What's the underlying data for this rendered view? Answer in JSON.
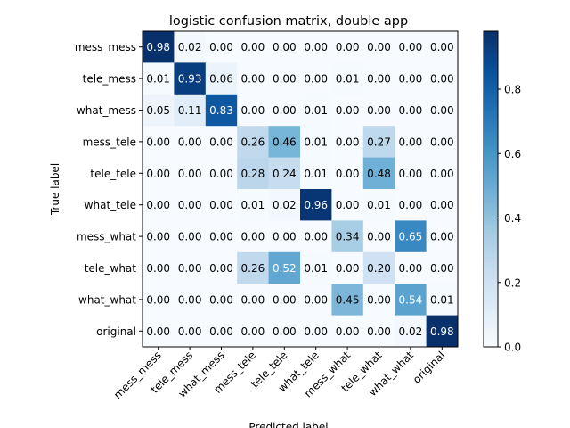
{
  "chart_data": {
    "type": "heatmap",
    "title": "logistic confusion matrix, double app",
    "xlabel": "Predicted label",
    "ylabel": "True label",
    "x_categories": [
      "mess_mess",
      "tele_mess",
      "what_mess",
      "mess_tele",
      "tele_tele",
      "what_tele",
      "mess_what",
      "tele_what",
      "what_what",
      "original"
    ],
    "y_categories": [
      "mess_mess",
      "tele_mess",
      "what_mess",
      "mess_tele",
      "tele_tele",
      "what_tele",
      "mess_what",
      "tele_what",
      "what_what",
      "original"
    ],
    "values": [
      [
        0.98,
        0.02,
        0.0,
        0.0,
        0.0,
        0.0,
        0.0,
        0.0,
        0.0,
        0.0
      ],
      [
        0.01,
        0.93,
        0.06,
        0.0,
        0.0,
        0.0,
        0.01,
        0.0,
        0.0,
        0.0
      ],
      [
        0.05,
        0.11,
        0.83,
        0.0,
        0.0,
        0.01,
        0.0,
        0.0,
        0.0,
        0.0
      ],
      [
        0.0,
        0.0,
        0.0,
        0.26,
        0.46,
        0.01,
        0.0,
        0.27,
        0.0,
        0.0
      ],
      [
        0.0,
        0.0,
        0.0,
        0.28,
        0.24,
        0.01,
        0.0,
        0.48,
        0.0,
        0.0
      ],
      [
        0.0,
        0.0,
        0.0,
        0.01,
        0.02,
        0.96,
        0.0,
        0.01,
        0.0,
        0.0
      ],
      [
        0.0,
        0.0,
        0.0,
        0.0,
        0.0,
        0.0,
        0.34,
        0.0,
        0.65,
        0.0
      ],
      [
        0.0,
        0.0,
        0.0,
        0.26,
        0.52,
        0.01,
        0.0,
        0.2,
        0.0,
        0.0
      ],
      [
        0.0,
        0.0,
        0.0,
        0.0,
        0.0,
        0.0,
        0.45,
        0.0,
        0.54,
        0.01
      ],
      [
        0.0,
        0.0,
        0.0,
        0.0,
        0.0,
        0.0,
        0.0,
        0.0,
        0.02,
        0.98
      ]
    ],
    "colormap": "Blues",
    "colorbar_range": [
      0.0,
      0.98
    ],
    "colorbar_ticks": [
      "0.0",
      "0.2",
      "0.4",
      "0.6",
      "0.8"
    ],
    "grid": false
  }
}
